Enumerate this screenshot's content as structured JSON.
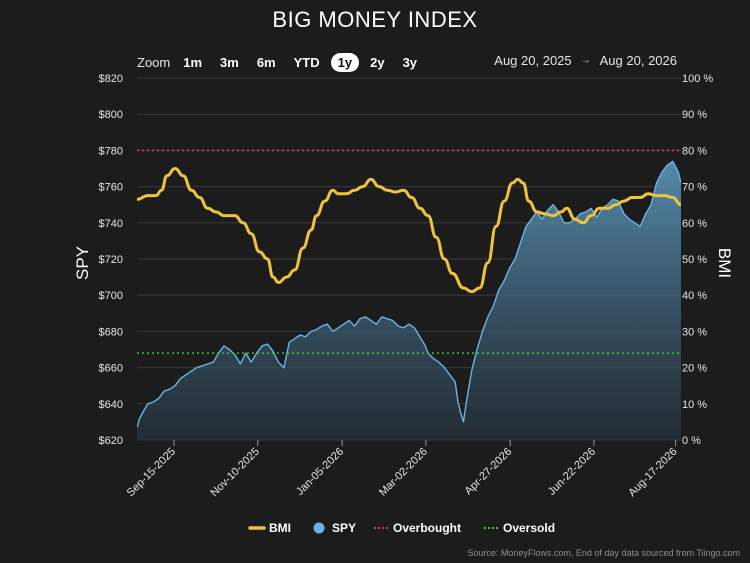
{
  "title": "BIG MONEY INDEX",
  "zoom": {
    "label": "Zoom",
    "buttons": [
      "1m",
      "3m",
      "6m",
      "YTD",
      "1y",
      "2y",
      "3y"
    ],
    "active": "1y"
  },
  "range": {
    "from": "Aug 20, 2025",
    "arrow": "→",
    "to": "Aug 20, 2026"
  },
  "source": "Source: MoneyFlows.com, End of day data sourced from Tiingo.com",
  "colors": {
    "background": "#1c1c1c",
    "bmi": "#f0c43a",
    "spy": "#6ab4e4",
    "overbought": "#d23a5e",
    "oversold": "#3fc43f",
    "grid": "#383838"
  },
  "chart_data": {
    "type": "line",
    "x_axis": {
      "ticks": [
        {
          "label": "Sep-15-2025",
          "pos": 0.068
        },
        {
          "label": "Nov-10-2025",
          "pos": 0.222
        },
        {
          "label": "Jan-05-2026",
          "pos": 0.377
        },
        {
          "label": "Mar-02-2026",
          "pos": 0.531
        },
        {
          "label": "Apr-27-2026",
          "pos": 0.686
        },
        {
          "label": "Jun-22-2026",
          "pos": 0.84
        },
        {
          "label": "Aug-17-2026",
          "pos": 0.99
        }
      ]
    },
    "y_left": {
      "label": "SPY",
      "min": 620,
      "max": 820,
      "ticks": [
        "$620",
        "$640",
        "$660",
        "$680",
        "$700",
        "$720",
        "$740",
        "$760",
        "$780",
        "$800",
        "$820"
      ]
    },
    "y_right": {
      "label": "BMI",
      "min": 0,
      "max": 100,
      "ticks": [
        "0 %",
        "10 %",
        "20 %",
        "30 %",
        "40 %",
        "50 %",
        "60 %",
        "70 %",
        "80 %",
        "90 %",
        "100 %"
      ]
    },
    "thresholds": {
      "overbought": 80,
      "oversold": 24
    },
    "legend": [
      {
        "name": "BMI",
        "marker": "line",
        "color": "#f0c43a"
      },
      {
        "name": "SPY",
        "marker": "dot",
        "color": "#6ab4e4"
      },
      {
        "name": "Overbought",
        "marker": "line",
        "color": "#d23a5e"
      },
      {
        "name": "Oversold",
        "marker": "line",
        "color": "#3fc43f"
      }
    ],
    "series": [
      {
        "name": "BMI",
        "axis": "right",
        "points": [
          [
            0.0,
            66.5
          ],
          [
            0.02,
            67.5
          ],
          [
            0.035,
            67.5
          ],
          [
            0.045,
            69
          ],
          [
            0.055,
            73
          ],
          [
            0.07,
            75
          ],
          [
            0.085,
            73
          ],
          [
            0.1,
            69
          ],
          [
            0.115,
            67
          ],
          [
            0.13,
            64
          ],
          [
            0.145,
            63
          ],
          [
            0.16,
            62
          ],
          [
            0.18,
            62
          ],
          [
            0.195,
            60
          ],
          [
            0.21,
            57
          ],
          [
            0.225,
            52
          ],
          [
            0.24,
            50
          ],
          [
            0.25,
            45
          ],
          [
            0.26,
            43.5
          ],
          [
            0.275,
            45
          ],
          [
            0.29,
            47
          ],
          [
            0.305,
            53
          ],
          [
            0.32,
            58
          ],
          [
            0.33,
            62
          ],
          [
            0.345,
            66
          ],
          [
            0.36,
            69
          ],
          [
            0.37,
            68
          ],
          [
            0.385,
            68
          ],
          [
            0.4,
            69
          ],
          [
            0.415,
            70
          ],
          [
            0.43,
            72
          ],
          [
            0.445,
            70
          ],
          [
            0.46,
            69
          ],
          [
            0.475,
            68.5
          ],
          [
            0.49,
            69
          ],
          [
            0.505,
            67
          ],
          [
            0.52,
            64
          ],
          [
            0.535,
            62
          ],
          [
            0.55,
            56
          ],
          [
            0.565,
            50
          ],
          [
            0.58,
            46
          ],
          [
            0.6,
            42
          ],
          [
            0.615,
            41
          ],
          [
            0.63,
            42
          ],
          [
            0.645,
            49
          ],
          [
            0.66,
            59
          ],
          [
            0.675,
            66
          ],
          [
            0.69,
            71
          ],
          [
            0.7,
            72
          ],
          [
            0.71,
            71
          ],
          [
            0.72,
            66
          ],
          [
            0.735,
            63
          ],
          [
            0.75,
            62.5
          ],
          [
            0.765,
            62
          ],
          [
            0.78,
            63
          ],
          [
            0.79,
            64
          ],
          [
            0.805,
            61
          ],
          [
            0.82,
            60
          ],
          [
            0.835,
            62
          ],
          [
            0.85,
            64
          ],
          [
            0.865,
            64
          ],
          [
            0.88,
            65
          ],
          [
            0.895,
            66
          ],
          [
            0.91,
            67
          ],
          [
            0.925,
            67
          ],
          [
            0.94,
            68
          ],
          [
            0.955,
            67.5
          ],
          [
            0.97,
            67.5
          ],
          [
            0.985,
            67
          ],
          [
            1.0,
            65
          ]
        ]
      },
      {
        "name": "SPY",
        "axis": "left",
        "points": [
          [
            0.0,
            627
          ],
          [
            0.005,
            632
          ],
          [
            0.012,
            636
          ],
          [
            0.02,
            640
          ],
          [
            0.03,
            641
          ],
          [
            0.04,
            643
          ],
          [
            0.05,
            647
          ],
          [
            0.06,
            648
          ],
          [
            0.07,
            650
          ],
          [
            0.08,
            654
          ],
          [
            0.09,
            656
          ],
          [
            0.1,
            658
          ],
          [
            0.11,
            660
          ],
          [
            0.12,
            661
          ],
          [
            0.13,
            662
          ],
          [
            0.14,
            663
          ],
          [
            0.15,
            668
          ],
          [
            0.16,
            672
          ],
          [
            0.17,
            670
          ],
          [
            0.18,
            667
          ],
          [
            0.19,
            662
          ],
          [
            0.2,
            668
          ],
          [
            0.21,
            663
          ],
          [
            0.22,
            668
          ],
          [
            0.23,
            672
          ],
          [
            0.24,
            673
          ],
          [
            0.25,
            669
          ],
          [
            0.26,
            663
          ],
          [
            0.27,
            660
          ],
          [
            0.28,
            674
          ],
          [
            0.29,
            676
          ],
          [
            0.3,
            678
          ],
          [
            0.31,
            677
          ],
          [
            0.32,
            680
          ],
          [
            0.33,
            681
          ],
          [
            0.34,
            683
          ],
          [
            0.35,
            684
          ],
          [
            0.36,
            680
          ],
          [
            0.37,
            682
          ],
          [
            0.38,
            684
          ],
          [
            0.39,
            686
          ],
          [
            0.4,
            683
          ],
          [
            0.41,
            687
          ],
          [
            0.42,
            688
          ],
          [
            0.43,
            686
          ],
          [
            0.44,
            684
          ],
          [
            0.45,
            688
          ],
          [
            0.46,
            687
          ],
          [
            0.47,
            686
          ],
          [
            0.48,
            683
          ],
          [
            0.49,
            682
          ],
          [
            0.5,
            684
          ],
          [
            0.51,
            682
          ],
          [
            0.52,
            677
          ],
          [
            0.53,
            672
          ],
          [
            0.535,
            668
          ],
          [
            0.545,
            665
          ],
          [
            0.555,
            663
          ],
          [
            0.565,
            660
          ],
          [
            0.575,
            656
          ],
          [
            0.585,
            652
          ],
          [
            0.59,
            641
          ],
          [
            0.595,
            635
          ],
          [
            0.6,
            630
          ],
          [
            0.605,
            640
          ],
          [
            0.615,
            658
          ],
          [
            0.625,
            670
          ],
          [
            0.635,
            680
          ],
          [
            0.645,
            688
          ],
          [
            0.655,
            694
          ],
          [
            0.665,
            703
          ],
          [
            0.675,
            708
          ],
          [
            0.685,
            715
          ],
          [
            0.695,
            720
          ],
          [
            0.705,
            729
          ],
          [
            0.715,
            738
          ],
          [
            0.725,
            742
          ],
          [
            0.735,
            746
          ],
          [
            0.745,
            742
          ],
          [
            0.755,
            747
          ],
          [
            0.765,
            750
          ],
          [
            0.775,
            746
          ],
          [
            0.785,
            740
          ],
          [
            0.795,
            740
          ],
          [
            0.805,
            742
          ],
          [
            0.815,
            745
          ],
          [
            0.825,
            746
          ],
          [
            0.835,
            748
          ],
          [
            0.845,
            743
          ],
          [
            0.855,
            748
          ],
          [
            0.865,
            750
          ],
          [
            0.875,
            753
          ],
          [
            0.885,
            752
          ],
          [
            0.895,
            745
          ],
          [
            0.905,
            742
          ],
          [
            0.915,
            740
          ],
          [
            0.925,
            738
          ],
          [
            0.935,
            745
          ],
          [
            0.945,
            750
          ],
          [
            0.955,
            762
          ],
          [
            0.965,
            768
          ],
          [
            0.975,
            772
          ],
          [
            0.985,
            774
          ],
          [
            0.995,
            768
          ],
          [
            1.0,
            762
          ]
        ]
      }
    ]
  }
}
